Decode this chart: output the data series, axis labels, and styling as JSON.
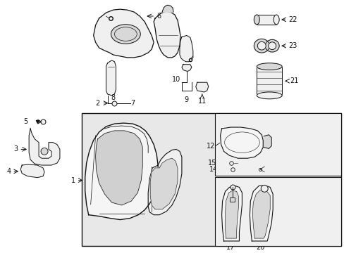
{
  "bg_color": "#ffffff",
  "fig_width": 4.89,
  "fig_height": 3.6,
  "dpi": 100,
  "line_color": "#111111",
  "fill_light": "#f0f0f0",
  "fill_mid": "#d8d8d8",
  "fill_dark": "#b8b8b8",
  "box_fill": "#e8e8e8"
}
